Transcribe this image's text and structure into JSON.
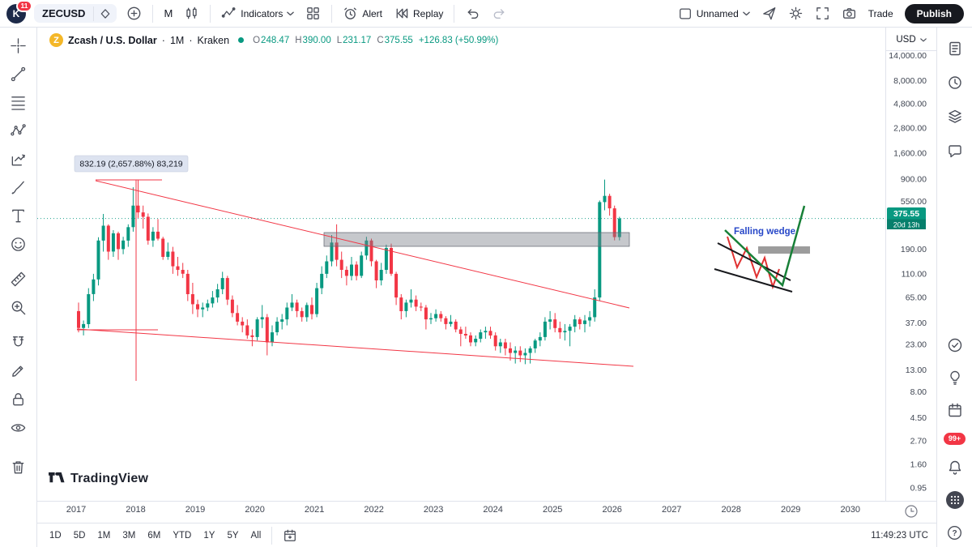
{
  "top_toolbar": {
    "avatar_letter": "K",
    "notification_badge": "11",
    "symbol": "ZECUSD",
    "interval": "M",
    "indicators": "Indicators",
    "alert": "Alert",
    "replay": "Replay",
    "layout_name": "Unnamed",
    "trade": "Trade",
    "publish": "Publish"
  },
  "symbol_header": {
    "name": "Zcash / U.S. Dollar",
    "sep": "·",
    "interval": "1M",
    "exchange": "Kraken",
    "ohlc_labels": {
      "o": "O",
      "h": "H",
      "l": "L",
      "c": "C"
    },
    "ohlc": {
      "open": "248.47",
      "high": "390.00",
      "low": "231.17",
      "close": "375.55",
      "change": "+126.83 (+50.99%)"
    }
  },
  "price_scale": {
    "currency": "USD",
    "current_price": "375.55",
    "countdown": "20d 13h",
    "ticks": [
      {
        "label": "14,000.00",
        "value": 14000
      },
      {
        "label": "8,000.00",
        "value": 8000
      },
      {
        "label": "4,800.00",
        "value": 4800
      },
      {
        "label": "2,800.00",
        "value": 2800
      },
      {
        "label": "1,600.00",
        "value": 1600
      },
      {
        "label": "900.00",
        "value": 900
      },
      {
        "label": "550.00",
        "value": 550
      },
      {
        "label": "190.00",
        "value": 190
      },
      {
        "label": "110.00",
        "value": 110
      },
      {
        "label": "65.00",
        "value": 65
      },
      {
        "label": "37.00",
        "value": 37
      },
      {
        "label": "23.00",
        "value": 23
      },
      {
        "label": "13.00",
        "value": 13
      },
      {
        "label": "8.00",
        "value": 8
      },
      {
        "label": "4.50",
        "value": 4.5
      },
      {
        "label": "2.70",
        "value": 2.7
      },
      {
        "label": "1.60",
        "value": 1.6
      },
      {
        "label": "0.95",
        "value": 0.95
      }
    ]
  },
  "time_scale": {
    "years": [
      "2017",
      "2018",
      "2019",
      "2020",
      "2021",
      "2022",
      "2023",
      "2024",
      "2025",
      "2026",
      "2027",
      "2028",
      "2029",
      "2030"
    ]
  },
  "bottom_toolbar": {
    "ranges": [
      "1D",
      "5D",
      "1M",
      "3M",
      "6M",
      "YTD",
      "1Y",
      "5Y",
      "All"
    ],
    "clock": "11:49:23 UTC"
  },
  "right_rail": {
    "notifications": "99+",
    "help": "?"
  },
  "watermark": "TradingView",
  "drawings": {
    "range_label": "832.19 (2,657.88%) 83,219",
    "wedge_label": "Falling  wedge"
  },
  "colors": {
    "up": "#089981",
    "down": "#f23645",
    "drawing_red": "#f23645",
    "badge": "#089981"
  },
  "chart_data": {
    "type": "candlestick",
    "title": "Zcash / U.S. Dollar · 1M · Kraken",
    "scale": "log",
    "interval": "1M",
    "start_month": "2017-01",
    "ylim": [
      0.95,
      14000
    ],
    "x_years": [
      2017,
      2030
    ],
    "current": {
      "open": 248.47,
      "high": 390.0,
      "low": 231.17,
      "close": 375.55,
      "change": 126.83,
      "change_pct": 50.99
    },
    "ohlc": [
      [
        48,
        58,
        30,
        33
      ],
      [
        33,
        39,
        28,
        36
      ],
      [
        36,
        80,
        33,
        70
      ],
      [
        70,
        110,
        60,
        97
      ],
      [
        97,
        248,
        85,
        230
      ],
      [
        230,
        415,
        180,
        320
      ],
      [
        320,
        330,
        150,
        180
      ],
      [
        180,
        290,
        160,
        270
      ],
      [
        270,
        280,
        150,
        190
      ],
      [
        190,
        250,
        170,
        230
      ],
      [
        230,
        330,
        200,
        310
      ],
      [
        310,
        750,
        280,
        500
      ],
      [
        500,
        880,
        380,
        430
      ],
      [
        430,
        500,
        300,
        390
      ],
      [
        390,
        420,
        210,
        230
      ],
      [
        230,
        310,
        200,
        280
      ],
      [
        280,
        370,
        230,
        240
      ],
      [
        240,
        250,
        150,
        160
      ],
      [
        160,
        220,
        150,
        180
      ],
      [
        180,
        200,
        110,
        130
      ],
      [
        130,
        160,
        105,
        120
      ],
      [
        120,
        140,
        100,
        110
      ],
      [
        110,
        120,
        60,
        70
      ],
      [
        70,
        90,
        45,
        56
      ],
      [
        56,
        62,
        42,
        50
      ],
      [
        50,
        58,
        42,
        52
      ],
      [
        52,
        62,
        48,
        57
      ],
      [
        57,
        75,
        52,
        65
      ],
      [
        65,
        88,
        58,
        78
      ],
      [
        78,
        115,
        70,
        100
      ],
      [
        100,
        105,
        55,
        62
      ],
      [
        62,
        68,
        42,
        46
      ],
      [
        46,
        55,
        35,
        38
      ],
      [
        38,
        42,
        30,
        35
      ],
      [
        35,
        40,
        26,
        28
      ],
      [
        28,
        32,
        22,
        27
      ],
      [
        27,
        42,
        25,
        40
      ],
      [
        40,
        55,
        33,
        42
      ],
      [
        42,
        45,
        18,
        24
      ],
      [
        24,
        35,
        22,
        30
      ],
      [
        30,
        42,
        28,
        38
      ],
      [
        38,
        45,
        32,
        40
      ],
      [
        40,
        58,
        35,
        52
      ],
      [
        52,
        70,
        48,
        58
      ],
      [
        58,
        62,
        42,
        48
      ],
      [
        48,
        52,
        38,
        42
      ],
      [
        42,
        58,
        38,
        55
      ],
      [
        55,
        65,
        40,
        45
      ],
      [
        45,
        90,
        42,
        80
      ],
      [
        80,
        130,
        70,
        110
      ],
      [
        110,
        165,
        100,
        145
      ],
      [
        145,
        260,
        130,
        220
      ],
      [
        220,
        330,
        130,
        150
      ],
      [
        150,
        180,
        100,
        120
      ],
      [
        120,
        130,
        85,
        105
      ],
      [
        105,
        160,
        95,
        135
      ],
      [
        135,
        145,
        95,
        105
      ],
      [
        105,
        180,
        100,
        165
      ],
      [
        165,
        250,
        150,
        230
      ],
      [
        230,
        240,
        130,
        145
      ],
      [
        145,
        150,
        80,
        95
      ],
      [
        95,
        140,
        85,
        120
      ],
      [
        120,
        210,
        110,
        195
      ],
      [
        195,
        215,
        105,
        110
      ],
      [
        110,
        115,
        55,
        65
      ],
      [
        65,
        70,
        40,
        48
      ],
      [
        48,
        62,
        42,
        58
      ],
      [
        58,
        78,
        52,
        62
      ],
      [
        62,
        68,
        48,
        53
      ],
      [
        53,
        58,
        48,
        52
      ],
      [
        52,
        55,
        32,
        40
      ],
      [
        40,
        46,
        36,
        41
      ],
      [
        41,
        50,
        38,
        45
      ],
      [
        45,
        48,
        38,
        41
      ],
      [
        41,
        43,
        32,
        36
      ],
      [
        36,
        44,
        34,
        38
      ],
      [
        38,
        40,
        30,
        32
      ],
      [
        32,
        34,
        22,
        29
      ],
      [
        29,
        34,
        26,
        28
      ],
      [
        28,
        30,
        22,
        24
      ],
      [
        24,
        28,
        22,
        26
      ],
      [
        26,
        32,
        24,
        30
      ],
      [
        30,
        34,
        26,
        31
      ],
      [
        31,
        34,
        26,
        28
      ],
      [
        28,
        30,
        20,
        22
      ],
      [
        22,
        26,
        19,
        24
      ],
      [
        24,
        26,
        18,
        21
      ],
      [
        21,
        24,
        16,
        19
      ],
      [
        19,
        22,
        15,
        20
      ],
      [
        20,
        22,
        15.5,
        18
      ],
      [
        18,
        21,
        14.8,
        19
      ],
      [
        19,
        22,
        15,
        21
      ],
      [
        21,
        26,
        19,
        25
      ],
      [
        25,
        30,
        22,
        27
      ],
      [
        27,
        42,
        25,
        38
      ],
      [
        38,
        48,
        32,
        40
      ],
      [
        40,
        46,
        30,
        33
      ],
      [
        33,
        38,
        26,
        30
      ],
      [
        30,
        36,
        25,
        31
      ],
      [
        31,
        36,
        22,
        34
      ],
      [
        34,
        44,
        30,
        40
      ],
      [
        40,
        42,
        32,
        36
      ],
      [
        36,
        44,
        30,
        39
      ],
      [
        39,
        48,
        34,
        42
      ],
      [
        42,
        78,
        38,
        65
      ],
      [
        65,
        560,
        60,
        540
      ],
      [
        540,
        890,
        450,
        620
      ],
      [
        620,
        650,
        400,
        470
      ],
      [
        470,
        500,
        231,
        248
      ],
      [
        248.47,
        390,
        231.17,
        375.55
      ]
    ]
  }
}
